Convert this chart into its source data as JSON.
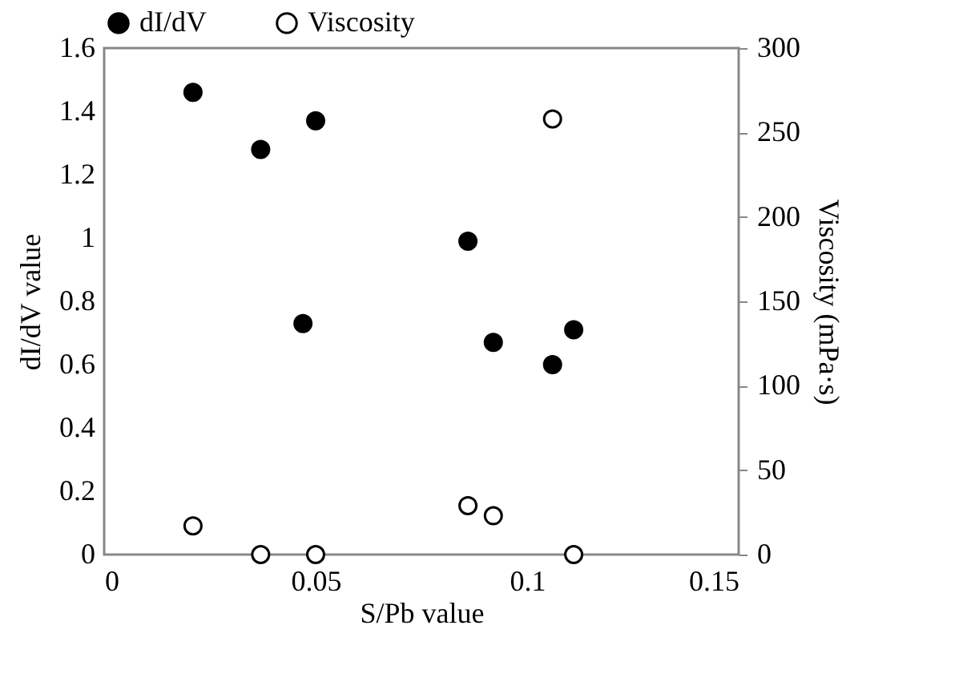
{
  "chart_data": {
    "type": "scatter",
    "xlabel": "S/Pb value",
    "ylabel": "dI/dV value",
    "y2label": "Viscosity (mPa·s)",
    "xlim": [
      0,
      0.15
    ],
    "xticks": [
      0,
      0.05,
      0.1,
      0.15
    ],
    "ylim": [
      0,
      1.6
    ],
    "yticks": [
      0,
      0.2,
      0.4,
      0.6,
      0.8,
      1,
      1.2,
      1.4,
      1.6
    ],
    "y2lim": [
      0,
      300
    ],
    "y2ticks": [
      0,
      50,
      100,
      150,
      200,
      250,
      300
    ],
    "legend": "top",
    "marker": "circle",
    "grid": false,
    "series": [
      {
        "name": "dI/dV",
        "color": "#000000",
        "x": [
          0.021,
          0.037,
          0.05,
          0.047,
          0.086,
          0.092,
          0.106,
          0.111
        ],
        "values": [
          1.46,
          1.28,
          1.37,
          0.73,
          0.99,
          0.67,
          0.6,
          0.71
        ]
      },
      {
        "name": "Viscosity",
        "color": "#ffffff",
        "axis": "y2",
        "x": [
          0.021,
          0.037,
          0.05,
          0.086,
          0.092,
          0.106,
          0.111
        ],
        "values": [
          17,
          0,
          0,
          29,
          23,
          258,
          0
        ]
      }
    ]
  }
}
